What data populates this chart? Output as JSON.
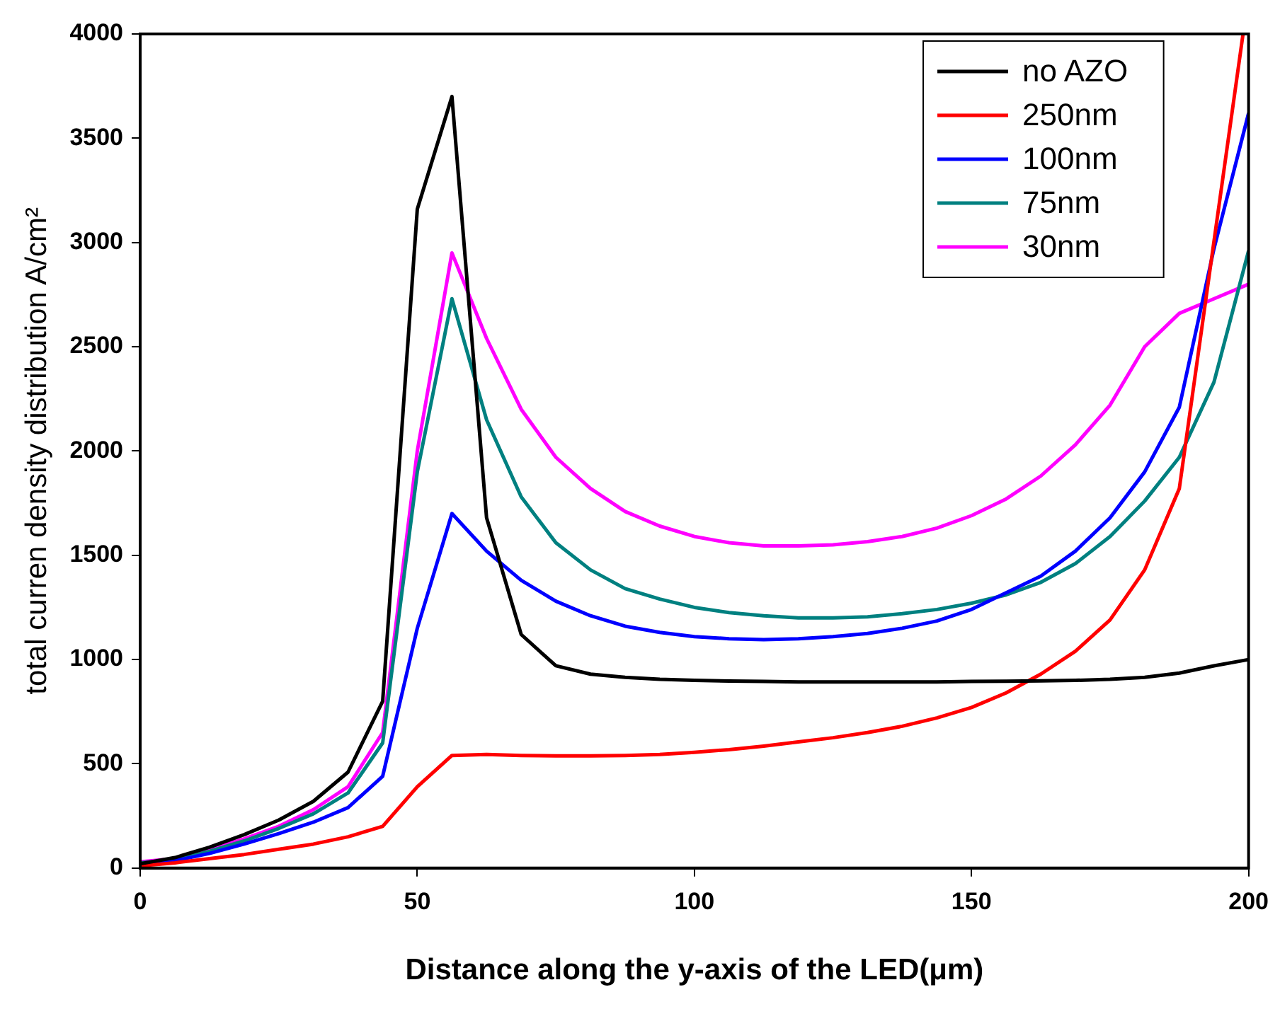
{
  "chart_data": {
    "type": "line",
    "xlabel": "Distance along the y-axis of the LED(μm)",
    "ylabel": "total curren density distribution A/cm²",
    "x": [
      0,
      6.25,
      12.5,
      18.75,
      25,
      31.25,
      37.5,
      43.75,
      50,
      56.25,
      62.5,
      68.75,
      75,
      81.25,
      87.5,
      93.75,
      100,
      106.25,
      112.5,
      118.75,
      125,
      131.25,
      137.5,
      143.75,
      150,
      156.25,
      162.5,
      168.75,
      175,
      181.25,
      187.5,
      193.75,
      200
    ],
    "series": [
      {
        "name": "no AZO",
        "color": "#000000",
        "values": [
          20,
          50,
          100,
          160,
          230,
          320,
          460,
          800,
          3160,
          3700,
          1680,
          1120,
          970,
          930,
          915,
          905,
          900,
          897,
          895,
          893,
          893,
          893,
          893,
          893,
          895,
          896,
          898,
          900,
          905,
          915,
          935,
          970,
          1000
        ]
      },
      {
        "name": "250nm",
        "color": "#ff0000",
        "x": [
          0,
          6.25,
          12.5,
          18.75,
          25,
          31.25,
          37.5,
          43.75,
          50,
          56.25,
          62.5,
          68.75,
          75,
          81.25,
          87.5,
          93.75,
          100,
          106.25,
          112.5,
          118.75,
          125,
          131.25,
          137.5,
          143.75,
          150,
          156.25,
          162.5,
          168.75,
          175,
          181.25,
          187.5,
          199
        ],
        "values": [
          10,
          25,
          45,
          65,
          90,
          115,
          150,
          200,
          390,
          540,
          545,
          540,
          538,
          538,
          540,
          545,
          555,
          568,
          585,
          605,
          625,
          650,
          680,
          720,
          770,
          840,
          930,
          1040,
          1190,
          1430,
          1820,
          4000
        ]
      },
      {
        "name": "100nm",
        "color": "#0000ff",
        "values": [
          15,
          35,
          70,
          115,
          165,
          220,
          290,
          440,
          1150,
          1700,
          1520,
          1380,
          1280,
          1210,
          1160,
          1130,
          1110,
          1100,
          1095,
          1100,
          1110,
          1125,
          1150,
          1185,
          1240,
          1320,
          1400,
          1520,
          1680,
          1900,
          2210,
          2970,
          3620
        ]
      },
      {
        "name": "75nm",
        "color": "#008080",
        "values": [
          25,
          40,
          80,
          130,
          190,
          260,
          360,
          600,
          1900,
          2730,
          2150,
          1780,
          1560,
          1430,
          1340,
          1290,
          1250,
          1225,
          1210,
          1200,
          1200,
          1205,
          1220,
          1240,
          1270,
          1310,
          1370,
          1460,
          1590,
          1760,
          1970,
          2330,
          2960
        ]
      },
      {
        "name": "30nm",
        "color": "#ff00ff",
        "values": [
          30,
          45,
          90,
          140,
          200,
          280,
          390,
          650,
          2000,
          2950,
          2540,
          2200,
          1970,
          1820,
          1710,
          1640,
          1590,
          1560,
          1545,
          1545,
          1550,
          1565,
          1590,
          1630,
          1690,
          1770,
          1880,
          2030,
          2220,
          2500,
          2660,
          2730,
          2800
        ]
      }
    ],
    "xlim": [
      0,
      200
    ],
    "xticks": [
      0,
      50,
      100,
      150,
      200
    ],
    "ylim": [
      0,
      4000
    ],
    "yticks": [
      0,
      500,
      1000,
      1500,
      2000,
      2500,
      3000,
      3500,
      4000
    ],
    "grid": false,
    "legend": "top right",
    "marker": "none",
    "line_style": "solid"
  }
}
